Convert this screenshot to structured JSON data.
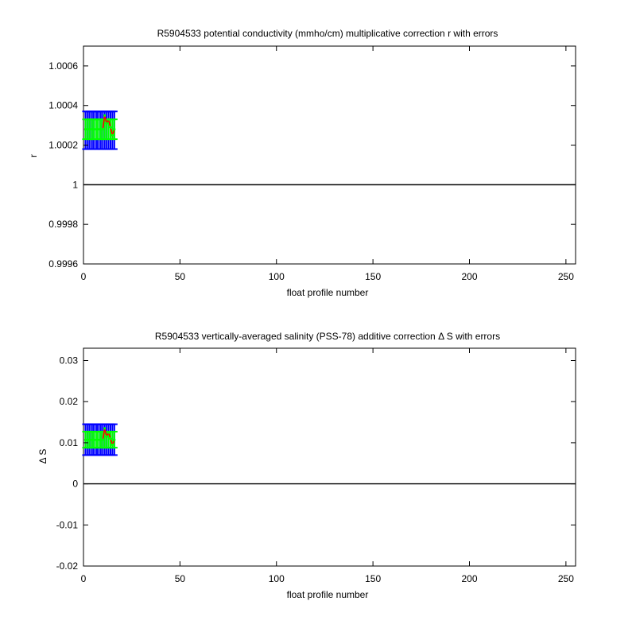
{
  "colors": {
    "axis": "#000000",
    "outer_error": "#0000ff",
    "inner_error": "#00ff00",
    "series": "#ff0000",
    "zero_line": "#000000"
  },
  "chart_data": [
    {
      "type": "line",
      "title": "R5904533 potential conductivity (mmho/cm) multiplicative correction r with errors",
      "xlabel": "float profile number",
      "ylabel": "r",
      "xlim": [
        0,
        255
      ],
      "ylim": [
        0.9996,
        1.0007
      ],
      "xticks": [
        0,
        50,
        100,
        150,
        200,
        250
      ],
      "xtick_labels": [
        "0",
        "50",
        "100",
        "150",
        "200",
        "250"
      ],
      "yticks": [
        0.9996,
        0.9998,
        1.0,
        1.0002,
        1.0004,
        1.0006
      ],
      "ytick_labels": [
        "0.9996",
        "0.9998",
        "1",
        "1.0002",
        "1.0004",
        "1.0006"
      ],
      "reference_line": 1.0,
      "grid": false,
      "x": [
        1,
        2,
        3,
        4,
        5,
        6,
        7,
        8,
        9,
        10,
        11,
        12,
        13,
        14,
        15,
        16
      ],
      "series": [
        {
          "role": "correction",
          "values": [
            1.00028,
            1.00028,
            1.00028,
            1.00028,
            1.00028,
            1.00028,
            1.00028,
            1.00028,
            1.00028,
            1.00028,
            1.00035,
            1.00031,
            1.00033,
            1.00029,
            1.00025,
            1.00028
          ]
        },
        {
          "role": "outer-error",
          "lower": [
            1.00018,
            1.00018,
            1.00018,
            1.00018,
            1.00018,
            1.00018,
            1.00018,
            1.00018,
            1.00018,
            1.00018,
            1.00018,
            1.00018,
            1.00018,
            1.00018,
            1.00018,
            1.00018
          ],
          "upper": [
            1.00037,
            1.00037,
            1.00037,
            1.00037,
            1.00037,
            1.00037,
            1.00037,
            1.00037,
            1.00037,
            1.00037,
            1.00037,
            1.00037,
            1.00037,
            1.00037,
            1.00037,
            1.00037
          ]
        },
        {
          "role": "inner-error",
          "lower": [
            1.00023,
            1.00023,
            1.00023,
            1.00023,
            1.00023,
            1.00023,
            1.00023,
            1.00023,
            1.00023,
            1.00023,
            1.00023,
            1.00023,
            1.00023,
            1.00023,
            1.00023,
            1.00023
          ],
          "upper": [
            1.00033,
            1.00033,
            1.00033,
            1.00033,
            1.00033,
            1.00033,
            1.00033,
            1.00033,
            1.00033,
            1.00033,
            1.00033,
            1.00033,
            1.00033,
            1.00033,
            1.00033,
            1.00033
          ]
        }
      ]
    },
    {
      "type": "line",
      "title": "R5904533 vertically-averaged salinity (PSS-78) additive correction Δ S with errors",
      "xlabel": "float profile number",
      "ylabel": "Δ S",
      "xlim": [
        0,
        255
      ],
      "ylim": [
        -0.02,
        0.033
      ],
      "xticks": [
        0,
        50,
        100,
        150,
        200,
        250
      ],
      "xtick_labels": [
        "0",
        "50",
        "100",
        "150",
        "200",
        "250"
      ],
      "yticks": [
        -0.02,
        -0.01,
        0,
        0.01,
        0.02,
        0.03
      ],
      "ytick_labels": [
        "-0.02",
        "-0.01",
        "0",
        "0.01",
        "0.02",
        "0.03"
      ],
      "reference_line": 0,
      "grid": false,
      "x": [
        1,
        2,
        3,
        4,
        5,
        6,
        7,
        8,
        9,
        10,
        11,
        12,
        13,
        14,
        15,
        16
      ],
      "series": [
        {
          "role": "correction",
          "values": [
            0.0107,
            0.0107,
            0.0107,
            0.0107,
            0.0107,
            0.0107,
            0.0107,
            0.0107,
            0.0107,
            0.0107,
            0.0135,
            0.0115,
            0.0125,
            0.011,
            0.0095,
            0.0107
          ]
        },
        {
          "role": "outer-error",
          "lower": [
            0.007,
            0.007,
            0.007,
            0.007,
            0.007,
            0.007,
            0.007,
            0.007,
            0.007,
            0.007,
            0.007,
            0.007,
            0.007,
            0.007,
            0.007,
            0.007
          ],
          "upper": [
            0.0145,
            0.0145,
            0.0145,
            0.0145,
            0.0145,
            0.0145,
            0.0145,
            0.0145,
            0.0145,
            0.0145,
            0.0145,
            0.0145,
            0.0145,
            0.0145,
            0.0145,
            0.0145
          ]
        },
        {
          "role": "inner-error",
          "lower": [
            0.0088,
            0.0088,
            0.0088,
            0.0088,
            0.0088,
            0.0088,
            0.0088,
            0.0088,
            0.0088,
            0.0088,
            0.0088,
            0.0088,
            0.0088,
            0.0088,
            0.0088,
            0.0088
          ],
          "upper": [
            0.0127,
            0.0127,
            0.0127,
            0.0127,
            0.0127,
            0.0127,
            0.0127,
            0.0127,
            0.0127,
            0.0127,
            0.0127,
            0.0127,
            0.0127,
            0.0127,
            0.0127,
            0.0127
          ]
        }
      ]
    }
  ]
}
